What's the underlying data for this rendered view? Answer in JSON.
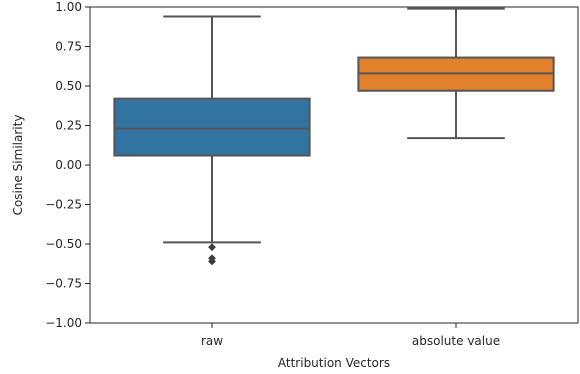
{
  "chart_data": {
    "type": "box",
    "xlabel": "Attribution Vectors",
    "ylabel": "Cosine Similarity",
    "ylim": [
      -1.0,
      1.0
    ],
    "yticks": [
      "−1.00",
      "−0.75",
      "−0.50",
      "−0.25",
      "0.00",
      "0.25",
      "0.50",
      "0.75",
      "1.00"
    ],
    "ytick_values": [
      -1.0,
      -0.75,
      -0.5,
      -0.25,
      0.0,
      0.25,
      0.5,
      0.75,
      1.0
    ],
    "grid": false,
    "categories": [
      "raw",
      "absolute value"
    ],
    "boxes": [
      {
        "category": "raw",
        "color": "#3274a1",
        "whisker_low": -0.49,
        "q1": 0.06,
        "median": 0.23,
        "q3": 0.42,
        "whisker_high": 0.94,
        "outliers": [
          -0.52,
          -0.59,
          -0.61
        ]
      },
      {
        "category": "absolute value",
        "color": "#e1812c",
        "whisker_low": 0.17,
        "q1": 0.47,
        "median": 0.58,
        "q3": 0.68,
        "whisker_high": 0.99,
        "outliers": []
      }
    ]
  }
}
